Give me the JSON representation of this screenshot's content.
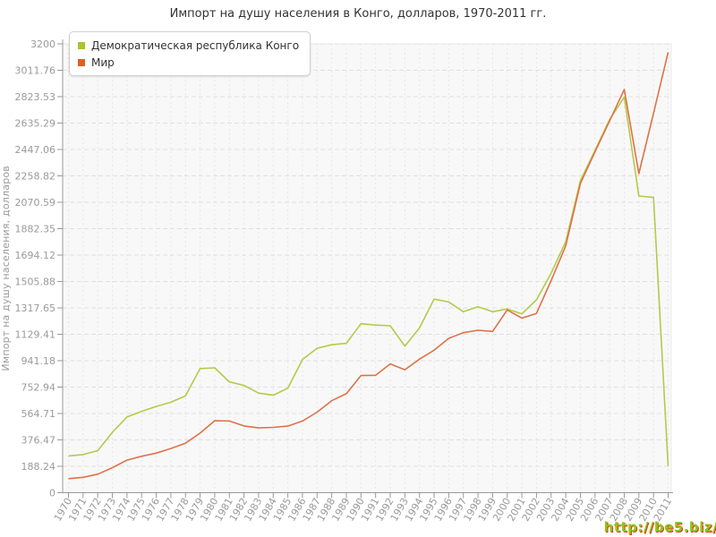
{
  "title": "Импорт на душу населения в Конго, долларов, 1970-2011 гг.",
  "watermark": "http://be5.biz/",
  "colors": {
    "congo_line": "#b2cb49",
    "world_line": "#de7248",
    "congo_marker": "#a6c62c",
    "world_marker": "#dd5f23",
    "plot_bg": "#f8f8f8",
    "plot_border": "#ebebeb",
    "grid_h": "#e0e0e0",
    "grid_v": "#e6e6e6",
    "axis": "#999999",
    "tick_text": "#9a9a9a",
    "title_text": "#333333",
    "watermark_green": "#8bc71f",
    "watermark_red": "#ee3311"
  },
  "chart_data": {
    "type": "line",
    "title": "Импорт на душу населения в Конго, долларов, 1970-2011 гг.",
    "xlabel": "",
    "ylabel": "Импорт на душу населения, долларов",
    "ylim": [
      0,
      3200
    ],
    "grid": true,
    "legend_position": "top-left",
    "y_tick_labels": [
      "0",
      "188.24",
      "376.47",
      "564.71",
      "752.94",
      "941.18",
      "1129.41",
      "1317.65",
      "1505.88",
      "1694.12",
      "1882.35",
      "2070.59",
      "2258.82",
      "2447.06",
      "2635.29",
      "2823.53",
      "3011.76",
      "3200"
    ],
    "y_tick_values": [
      0,
      188.24,
      376.47,
      564.71,
      752.94,
      941.18,
      1129.41,
      1317.65,
      1505.88,
      1694.12,
      1882.35,
      2070.59,
      2258.82,
      2447.06,
      2635.29,
      2823.53,
      3011.76,
      3200
    ],
    "categories": [
      "1970",
      "1971",
      "1972",
      "1973",
      "1974",
      "1975",
      "1976",
      "1977",
      "1978",
      "1979",
      "1980",
      "1981",
      "1982",
      "1983",
      "1984",
      "1985",
      "1986",
      "1987",
      "1988",
      "1989",
      "1990",
      "1991",
      "1992",
      "1993",
      "1994",
      "1995",
      "1996",
      "1997",
      "1998",
      "1999",
      "2000",
      "2001",
      "2002",
      "2003",
      "2004",
      "2005",
      "2006",
      "2007",
      "2008",
      "2009",
      "2010",
      "2011"
    ],
    "series": [
      {
        "name": "Демократическая республика Конго",
        "color_key": "congo_line",
        "values": [
          262,
          272,
          300,
          430,
          540,
          580,
          615,
          645,
          690,
          885,
          890,
          790,
          765,
          710,
          695,
          745,
          950,
          1030,
          1055,
          1065,
          1205,
          1195,
          1190,
          1045,
          1175,
          1380,
          1360,
          1290,
          1325,
          1290,
          1310,
          1275,
          1375,
          1565,
          1790,
          2225,
          2440,
          2660,
          2820,
          2115,
          2105,
          190
        ]
      },
      {
        "name": "Мир",
        "color_key": "world_line",
        "values": [
          100,
          110,
          132,
          178,
          232,
          260,
          282,
          315,
          353,
          425,
          513,
          511,
          476,
          462,
          466,
          475,
          511,
          574,
          656,
          706,
          835,
          837,
          918,
          877,
          952,
          1016,
          1101,
          1141,
          1158,
          1150,
          1303,
          1245,
          1278,
          1512,
          1760,
          2205,
          2430,
          2650,
          2875,
          2275,
          2705,
          3140
        ]
      }
    ]
  }
}
